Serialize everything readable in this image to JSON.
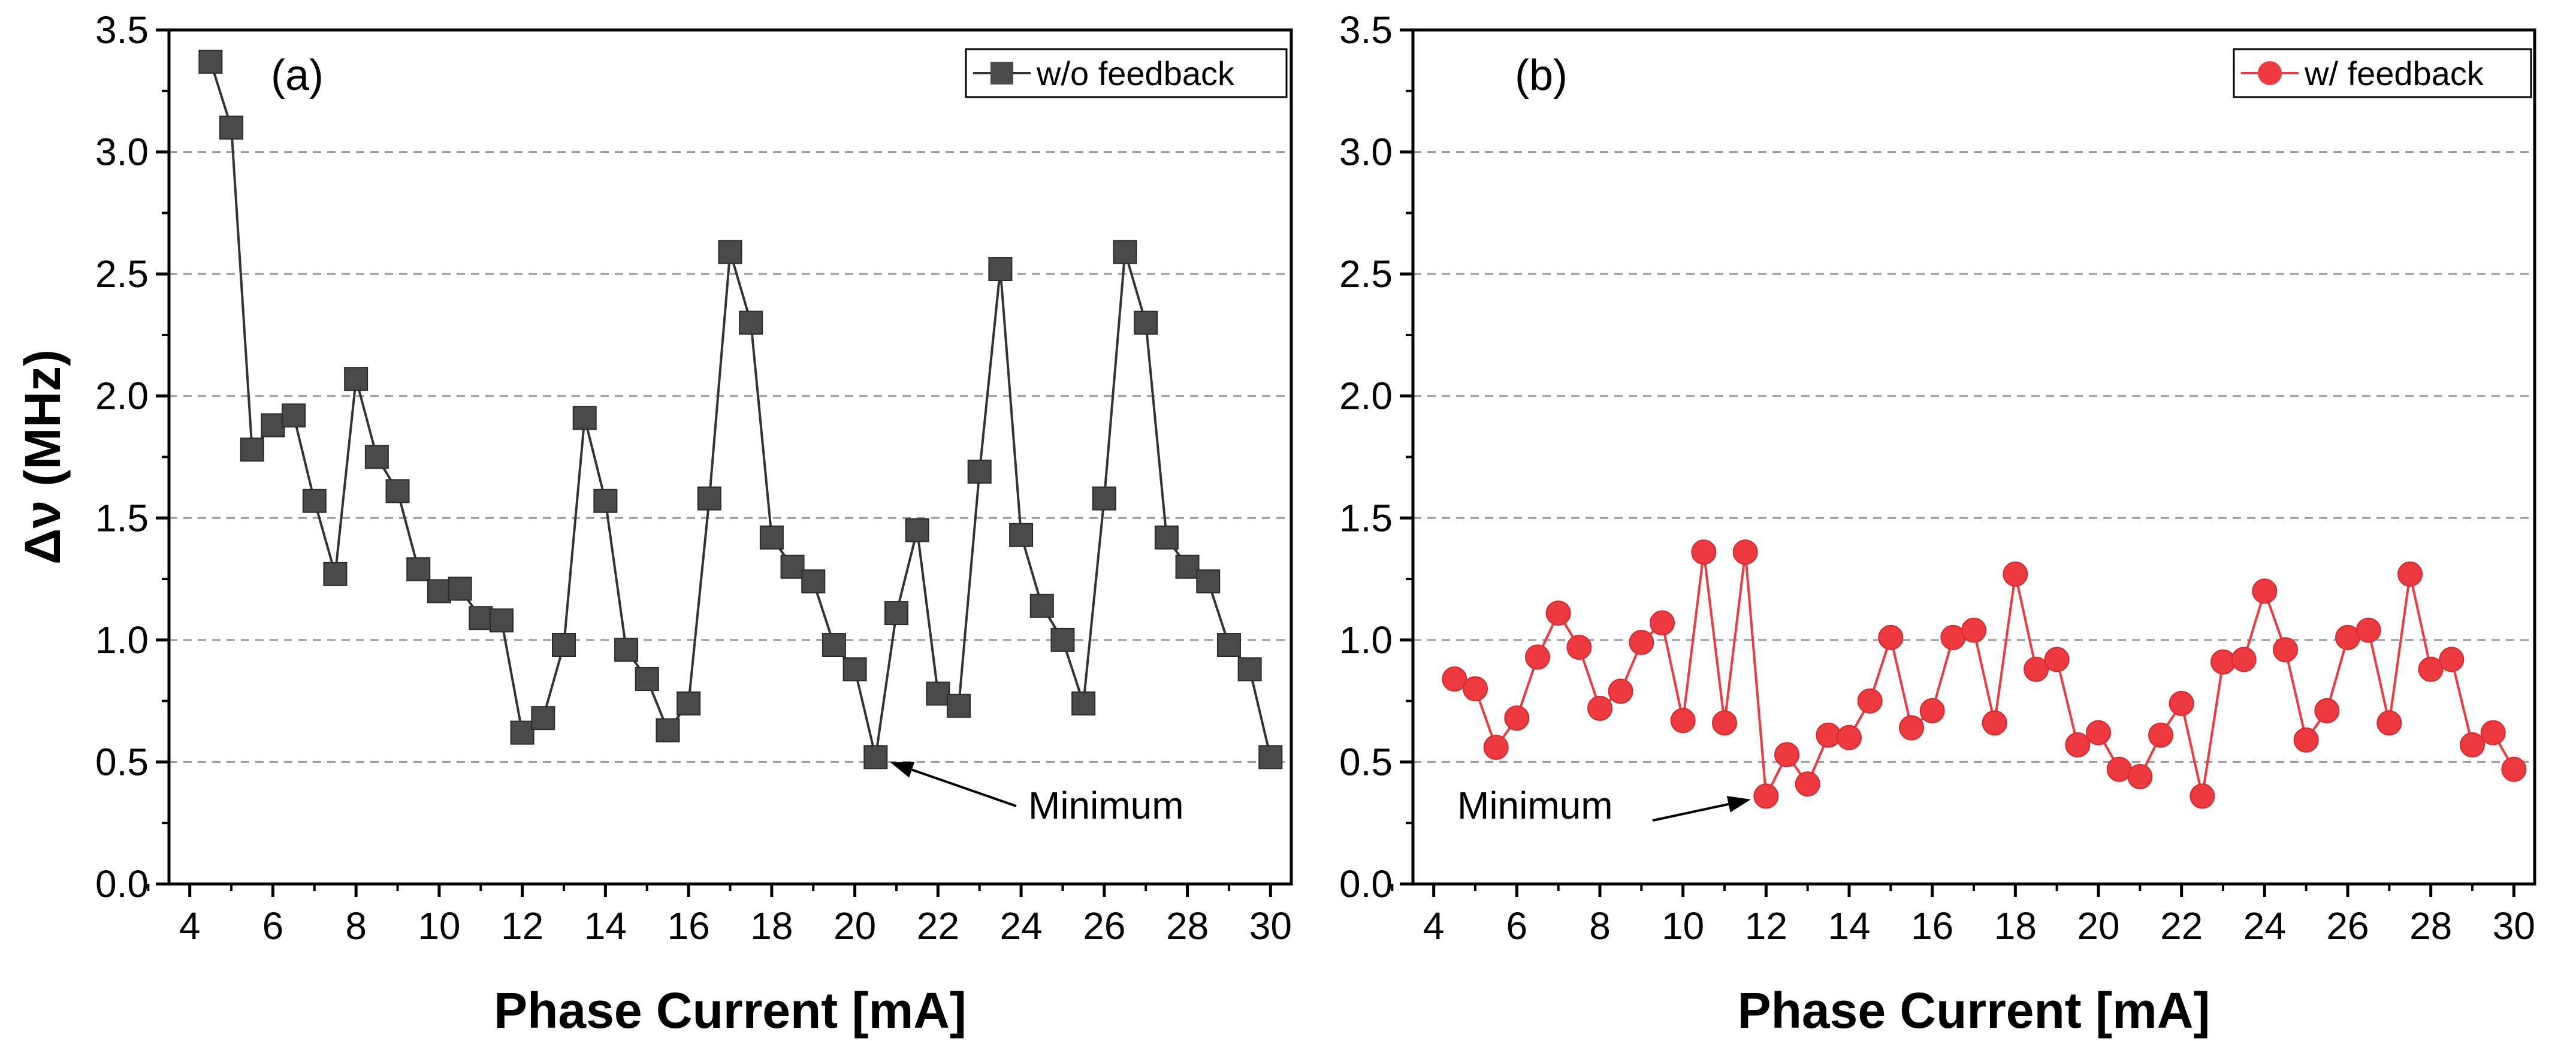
{
  "chart_data": [
    {
      "type": "line",
      "panel_label": "(a)",
      "xlabel": "Phase Current [mA]",
      "ylabel": "Δν (MHz)",
      "xlim": [
        3.5,
        30.5
      ],
      "ylim": [
        0.0,
        3.5
      ],
      "xticks": [
        "4",
        "6",
        "8",
        "10",
        "12",
        "14",
        "16",
        "18",
        "20",
        "22",
        "24",
        "26",
        "28",
        "30"
      ],
      "yticks": [
        "0.0",
        "0.5",
        "1.0",
        "1.5",
        "2.0",
        "2.5",
        "3.0",
        "3.5"
      ],
      "grid": "horizontal dashed",
      "legend_position": "top-right",
      "series": [
        {
          "name": "w/o feedback",
          "color": "#4a4a4a",
          "marker": "square",
          "x": [
            4.5,
            5,
            5.5,
            6,
            6.5,
            7,
            7.5,
            8,
            8.5,
            9,
            9.5,
            10,
            10.5,
            11,
            11.5,
            12,
            12.5,
            13,
            13.5,
            14,
            14.5,
            15,
            15.5,
            16,
            16.5,
            17,
            17.5,
            18,
            18.5,
            19,
            19.5,
            20,
            20.5,
            21,
            21.5,
            22,
            22.5,
            23,
            23.5,
            24,
            24.5,
            25,
            25.5,
            26,
            26.5,
            27,
            27.5,
            28,
            28.5,
            29,
            29.5,
            30
          ],
          "y": [
            3.37,
            3.1,
            1.78,
            1.88,
            1.92,
            1.57,
            1.27,
            2.07,
            1.75,
            1.61,
            1.29,
            1.2,
            1.21,
            1.09,
            1.08,
            0.62,
            0.68,
            0.98,
            1.91,
            1.57,
            0.96,
            0.84,
            0.63,
            0.74,
            1.58,
            2.59,
            2.3,
            1.42,
            1.3,
            1.24,
            0.98,
            0.88,
            0.52,
            1.11,
            1.45,
            0.78,
            0.73,
            1.69,
            2.52,
            1.43,
            1.14,
            1.0,
            0.74,
            1.58,
            2.59,
            2.3,
            1.42,
            1.3,
            1.24,
            0.98,
            0.88,
            0.52
          ]
        }
      ],
      "annotation": {
        "text": "Minimum",
        "x": 20.5,
        "y": 0.52
      }
    },
    {
      "type": "line",
      "panel_label": "(b)",
      "xlabel": "Phase Current [mA]",
      "ylabel": "",
      "xlim": [
        3.5,
        30.5
      ],
      "ylim": [
        0.0,
        3.5
      ],
      "xticks": [
        "4",
        "6",
        "8",
        "10",
        "12",
        "14",
        "16",
        "18",
        "20",
        "22",
        "24",
        "26",
        "28",
        "30"
      ],
      "yticks": [
        "0.0",
        "0.5",
        "1.0",
        "1.5",
        "2.0",
        "2.5",
        "3.0",
        "3.5"
      ],
      "grid": "horizontal dashed",
      "legend_position": "top-right",
      "series": [
        {
          "name": "w/ feedback",
          "color": "#ee3a3f",
          "marker": "circle",
          "x": [
            4.5,
            5,
            5.5,
            6,
            6.5,
            7,
            7.5,
            8,
            8.5,
            9,
            9.5,
            10,
            10.5,
            11,
            11.5,
            12,
            12.5,
            13,
            13.5,
            14,
            14.5,
            15,
            15.5,
            16,
            16.5,
            17,
            17.5,
            18,
            18.5,
            19,
            19.5,
            20,
            20.5,
            21,
            21.5,
            22,
            22.5,
            23,
            23.5,
            24,
            24.5,
            25,
            25.5,
            26,
            26.5,
            27,
            27.5,
            28,
            28.5,
            29,
            29.5,
            30
          ],
          "y": [
            0.84,
            0.8,
            0.56,
            0.68,
            0.93,
            1.11,
            0.97,
            0.72,
            0.79,
            0.99,
            1.07,
            0.67,
            1.36,
            0.66,
            1.36,
            0.36,
            0.53,
            0.41,
            0.61,
            0.6,
            0.75,
            1.01,
            0.64,
            0.71,
            1.01,
            1.04,
            0.66,
            1.27,
            0.88,
            0.92,
            0.57,
            0.62,
            0.47,
            0.44,
            0.61,
            0.74,
            0.36,
            0.91,
            0.92,
            1.2,
            0.96,
            0.59,
            0.71,
            1.01,
            1.04,
            0.66,
            1.27,
            0.88,
            0.92,
            0.57,
            0.62,
            0.47
          ]
        }
      ],
      "annotation": {
        "text": "Minimum",
        "x": 12.0,
        "y": 0.36
      }
    }
  ]
}
